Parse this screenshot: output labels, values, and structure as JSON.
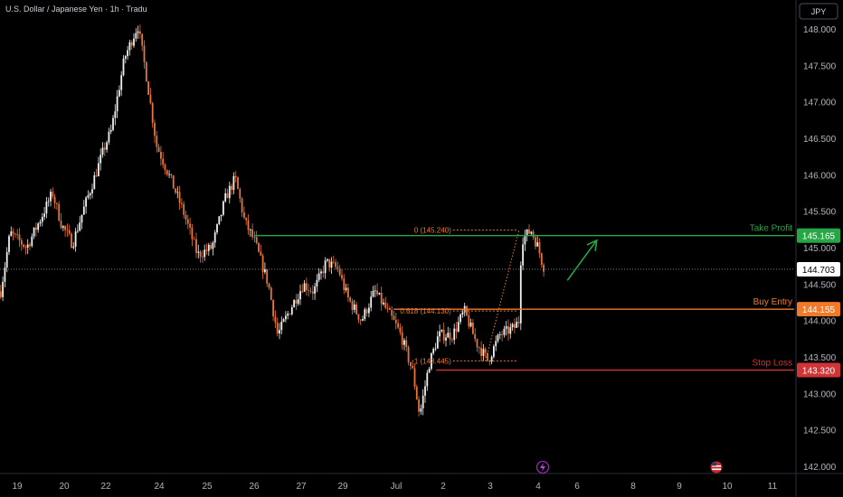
{
  "header": {
    "title": "U.S. Dollar / Japanese Yen · 1h · Tradu"
  },
  "currency_button": "JPY",
  "colors": {
    "background": "#000000",
    "up_candle": "#f0f0f0",
    "down_candle": "#e8743b",
    "take_profit": "#26a645",
    "buy_entry": "#f07a2a",
    "stop_loss": "#d03436",
    "axis_text": "#b2b5be"
  },
  "icons": {
    "lightning": "lightning-icon",
    "flag": "us-flag-icon"
  },
  "chart_data": {
    "type": "candlestick",
    "title": "U.S. Dollar / Japanese Yen · 1h · Tradu",
    "ylim": [
      141.9,
      148.25
    ],
    "y_ticks": [
      142.0,
      142.5,
      143.0,
      143.5,
      144.0,
      144.5,
      145.0,
      145.5,
      146.0,
      146.5,
      147.0,
      147.5,
      148.0
    ],
    "y_tick_labels": [
      "142.000",
      "142.500",
      "143.000",
      "143.500",
      "144.000",
      "144.500",
      "145.000",
      "145.500",
      "146.000",
      "146.500",
      "147.000",
      "147.500",
      "148.000"
    ],
    "x_ticks": [
      {
        "label": "19",
        "t": 0.0
      },
      {
        "label": "20",
        "t": 1.0
      },
      {
        "label": "22",
        "t": 2.0
      },
      {
        "label": "24",
        "t": 3.0
      },
      {
        "label": "25",
        "t": 4.0
      },
      {
        "label": "26",
        "t": 5.0
      },
      {
        "label": "27",
        "t": 6.0
      },
      {
        "label": "29",
        "t": 7.0
      },
      {
        "label": "Jul",
        "t": 8.0
      },
      {
        "label": "2",
        "t": 9.0
      },
      {
        "label": "3",
        "t": 10.0
      },
      {
        "label": "4",
        "t": 11.0
      },
      {
        "label": "6",
        "t": 12.0
      },
      {
        "label": "8",
        "t": 13.0
      },
      {
        "label": "9",
        "t": 14.0
      },
      {
        "label": "10",
        "t": 15.0
      },
      {
        "label": "11",
        "t": 16.0
      }
    ],
    "price_path": [
      [
        -0.35,
        144.4
      ],
      [
        -0.15,
        145.2
      ],
      [
        0.2,
        145.0
      ],
      [
        0.5,
        145.4
      ],
      [
        0.75,
        145.75
      ],
      [
        0.95,
        145.3
      ],
      [
        1.2,
        145.05
      ],
      [
        1.45,
        145.5
      ],
      [
        1.75,
        146.0
      ],
      [
        2.1,
        146.6
      ],
      [
        2.35,
        147.6
      ],
      [
        2.6,
        148.05
      ],
      [
        2.75,
        147.4
      ],
      [
        2.95,
        146.4
      ],
      [
        3.2,
        146.0
      ],
      [
        3.5,
        145.5
      ],
      [
        3.8,
        144.9
      ],
      [
        4.1,
        145.0
      ],
      [
        4.4,
        145.7
      ],
      [
        4.6,
        145.95
      ],
      [
        4.8,
        145.35
      ],
      [
        5.0,
        145.1
      ],
      [
        5.3,
        144.5
      ],
      [
        5.5,
        143.8
      ],
      [
        5.8,
        144.2
      ],
      [
        6.05,
        144.5
      ],
      [
        6.3,
        144.4
      ],
      [
        6.6,
        144.8
      ],
      [
        6.9,
        144.7
      ],
      [
        7.1,
        144.3
      ],
      [
        7.35,
        144.0
      ],
      [
        7.6,
        144.4
      ],
      [
        7.9,
        144.05
      ],
      [
        8.1,
        143.8
      ],
      [
        8.35,
        143.3
      ],
      [
        8.5,
        142.7
      ],
      [
        8.7,
        143.4
      ],
      [
        8.9,
        143.8
      ],
      [
        9.2,
        143.8
      ],
      [
        9.45,
        144.13
      ],
      [
        9.7,
        143.7
      ],
      [
        9.95,
        143.45
      ],
      [
        10.2,
        143.8
      ],
      [
        10.5,
        143.9
      ],
      [
        10.6,
        144.0
      ],
      [
        10.65,
        145.1
      ],
      [
        10.85,
        145.24
      ],
      [
        11.0,
        145.0
      ],
      [
        11.1,
        144.8
      ],
      [
        11.17,
        144.703
      ]
    ],
    "last_price": 144.703,
    "last_price_label": "144.703",
    "levels": [
      {
        "name": "Take Profit",
        "price": 145.165,
        "price_label": "145.165",
        "color": "#26a645",
        "t_start": 5.0
      },
      {
        "name": "Buy Entry",
        "price": 144.155,
        "price_label": "144.155",
        "color": "#f07a2a",
        "t_start": 7.95
      },
      {
        "name": "Stop Loss",
        "price": 143.32,
        "price_label": "143.320",
        "color": "#d03436",
        "t_start": 8.85
      }
    ],
    "fibonacci": [
      {
        "label": "0 (145.240)",
        "price": 145.24
      },
      {
        "label": "0.618 (144.130)",
        "price": 144.13
      },
      {
        "label": "1 (143.445)",
        "price": 143.445
      }
    ],
    "projection_arrow": {
      "from": [
        11.75,
        144.55
      ],
      "to": [
        12.35,
        145.1
      ]
    }
  }
}
